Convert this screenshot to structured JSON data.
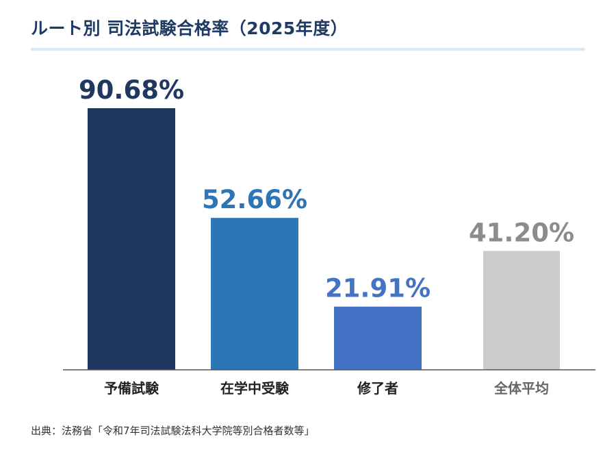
{
  "title": "ルート別 司法試験合格率（2025年度）",
  "source": "出典：法務省「令和7年司法試験法科大学院等別合格者数等」",
  "chart_data": {
    "type": "bar",
    "title": "ルート別 司法試験合格率（2025年度）",
    "xlabel": "",
    "ylabel": "",
    "ylim": [
      0,
      100
    ],
    "grid": false,
    "categories": [
      "予備試験",
      "在学中受験",
      "修了者",
      "全体平均"
    ],
    "values": [
      90.68,
      52.66,
      21.91,
      41.2
    ],
    "value_labels": [
      "90.68%",
      "52.66%",
      "21.91%",
      "41.20%"
    ],
    "bar_colors": [
      "#20375f",
      "#2e75b6",
      "#4472c4",
      "#cccccc"
    ],
    "label_colors": [
      "#20375f",
      "#2e75b6",
      "#4472c4",
      "#8c8c8c"
    ],
    "category_label_colors": [
      "#222222",
      "#222222",
      "#222222",
      "#666666"
    ]
  }
}
